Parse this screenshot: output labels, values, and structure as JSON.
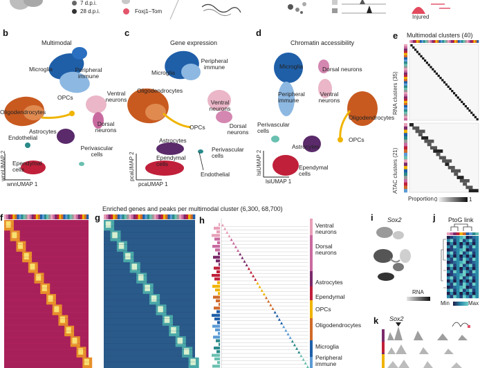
{
  "top": {
    "legend": [
      "7 d.p.i.",
      "28 d.p.i."
    ],
    "reporter": "Foxj1–Tom",
    "injured": "Injured"
  },
  "panels": {
    "b": {
      "letter": "b",
      "title": "Multimodal",
      "xaxis": "wnnUMAP 1",
      "yaxis": "wnnUMAP 2",
      "clusters": [
        "Microglia",
        "Peripheral immune",
        "Ventral neurons",
        "OPCs",
        "Oligodendrocytes",
        "Dorsal neurons",
        "Astrocytes",
        "Endothelial",
        "Perivascular cells",
        "Ependymal cells"
      ]
    },
    "c": {
      "letter": "c",
      "title": "Gene expression",
      "xaxis": "pcaUMAP 1",
      "yaxis": "pcaUMAP 2",
      "clusters": [
        "Microglia",
        "Peripheral immune",
        "Ventral neurons",
        "Oligodendrocytes",
        "OPCs",
        "Dorsal neurons",
        "Astrocytes",
        "Perivascular cells",
        "Ependymal cells",
        "Endothelial"
      ]
    },
    "d": {
      "letter": "d",
      "title": "Chromatin accessibility",
      "xaxis": "lsiUMAP 1",
      "yaxis": "lsiUMAP 2",
      "clusters": [
        "Microglia",
        "Dorsal neurons",
        "Peripheral immune",
        "Ventral neurons",
        "Oligodendrocytes",
        "Perivascular cells",
        "Astrocytes",
        "OPCs",
        "Ependymal cells"
      ]
    },
    "e": {
      "letter": "e",
      "title": "Multimodal clusters (40)",
      "rna": "RNA clusters (35)",
      "atac": "ATAC clusters (21)",
      "proportion": "Proportion",
      "min": "0",
      "max": "1"
    },
    "f": {
      "letter": "f"
    },
    "g": {
      "letter": "g"
    },
    "h": {
      "letter": "h",
      "groups": [
        "Ventral neurons",
        "Dorsal neurons",
        "Astrocytes",
        "Ependymal",
        "OPCs",
        "Oligodendrocytes",
        "Microglia",
        "Peripheral immune"
      ]
    },
    "i": {
      "letter": "i",
      "gene": "Sox2",
      "legend": "RNA"
    },
    "j": {
      "letter": "j",
      "title": "PtoG link",
      "min": "Min",
      "max": "Max"
    },
    "k": {
      "letter": "k",
      "gene": "Sox2"
    }
  },
  "heatmap_title": "Enriched genes and peaks per multimodal cluster (6,300, 68,700)",
  "colors": {
    "microglia": "#1f5fa8",
    "immune": "#5b9bd5",
    "ventral": "#e8a0b8",
    "dorsal": "#c86aa0",
    "oligo": "#d06a2a",
    "opc": "#f0b400",
    "astro": "#5a2a6a",
    "ependymal": "#c0203a",
    "endothelial": "#2a8a8a",
    "perivascular": "#6ac0b0"
  }
}
